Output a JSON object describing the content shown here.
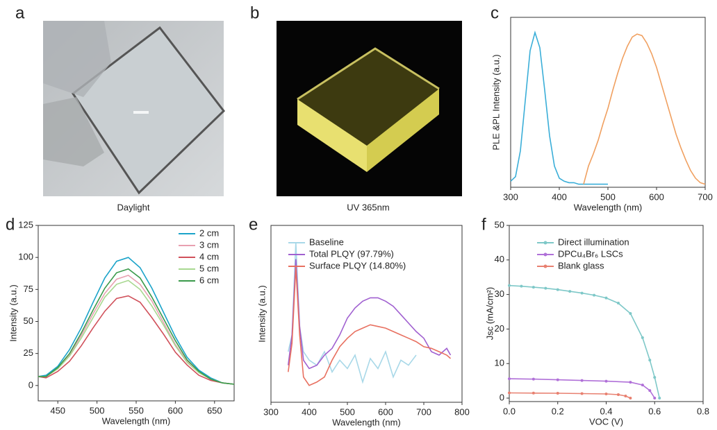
{
  "photos": [
    {
      "label": "a",
      "caption": "Daylight"
    },
    {
      "label": "b",
      "caption": "UV 365nm"
    }
  ],
  "chart_data": [
    {
      "type": "line",
      "label": "c",
      "ylabel": "PLE &PL Intensity (a.u.)",
      "xlabel": "Wavelength (nm)",
      "xlim": [
        300,
        700
      ],
      "xticks": [
        300,
        400,
        500,
        600,
        700
      ],
      "ylim": [
        -0.02,
        1.1
      ],
      "series": [
        {
          "color": "#3aaed8",
          "x": [
            300,
            310,
            320,
            330,
            340,
            350,
            360,
            370,
            380,
            390,
            400,
            410,
            420,
            430,
            440,
            450,
            460,
            470,
            480,
            490,
            500
          ],
          "values": [
            0.02,
            0.05,
            0.22,
            0.55,
            0.88,
            1.0,
            0.9,
            0.62,
            0.32,
            0.12,
            0.04,
            0.02,
            0.01,
            0.01,
            0,
            0,
            0,
            0,
            0,
            0,
            0
          ]
        },
        {
          "color": "#f0a060",
          "x": [
            450,
            460,
            470,
            480,
            490,
            500,
            510,
            520,
            530,
            540,
            550,
            560,
            570,
            580,
            590,
            600,
            610,
            620,
            630,
            640,
            650,
            660,
            670,
            680,
            690,
            700
          ],
          "values": [
            0,
            0.12,
            0.2,
            0.29,
            0.4,
            0.5,
            0.62,
            0.73,
            0.83,
            0.91,
            0.97,
            0.99,
            0.98,
            0.93,
            0.86,
            0.77,
            0.66,
            0.55,
            0.44,
            0.33,
            0.24,
            0.16,
            0.09,
            0.04,
            0.01,
            0
          ]
        }
      ]
    },
    {
      "type": "line",
      "label": "d",
      "ylabel": "Intensity (a.u.)",
      "xlabel": "Wavelength (nm)",
      "xlim": [
        425,
        675
      ],
      "xticks": [
        450,
        500,
        550,
        600,
        650
      ],
      "ylim": [
        -12,
        125
      ],
      "yticks": [
        0,
        25,
        50,
        75,
        100,
        125
      ],
      "legend": "upper right",
      "series": [
        {
          "name": "2 cm",
          "color": "#1aa3c9",
          "x": [
            425,
            435,
            450,
            465,
            480,
            495,
            510,
            525,
            540,
            555,
            570,
            585,
            600,
            615,
            630,
            645,
            660,
            675
          ],
          "values": [
            7,
            8,
            15,
            28,
            45,
            65,
            84,
            97,
            100,
            92,
            76,
            57,
            38,
            22,
            12,
            6,
            2,
            1
          ]
        },
        {
          "name": "3 cm",
          "color": "#e8a0b0",
          "x": [
            425,
            435,
            450,
            465,
            480,
            495,
            510,
            525,
            540,
            555,
            570,
            585,
            600,
            615,
            630,
            645,
            660,
            675
          ],
          "values": [
            7,
            7,
            13,
            24,
            39,
            56,
            72,
            83,
            86,
            79,
            66,
            49,
            32,
            19,
            10,
            5,
            2,
            1
          ]
        },
        {
          "name": "4 cm",
          "color": "#d0505a",
          "x": [
            425,
            435,
            450,
            465,
            480,
            495,
            510,
            525,
            540,
            555,
            570,
            585,
            600,
            615,
            630,
            645,
            660,
            675
          ],
          "values": [
            7,
            6,
            11,
            19,
            31,
            45,
            58,
            68,
            70,
            65,
            53,
            40,
            26,
            16,
            8,
            4,
            2,
            1
          ]
        },
        {
          "name": "5 cm",
          "color": "#a8d890",
          "x": [
            425,
            435,
            450,
            465,
            480,
            495,
            510,
            525,
            540,
            555,
            570,
            585,
            600,
            615,
            630,
            645,
            660,
            675
          ],
          "values": [
            7,
            7,
            13,
            23,
            37,
            53,
            69,
            79,
            82,
            75,
            62,
            47,
            31,
            18,
            10,
            5,
            2,
            1
          ]
        },
        {
          "name": "6 cm",
          "color": "#3a9a4a",
          "x": [
            425,
            435,
            450,
            465,
            480,
            495,
            510,
            525,
            540,
            555,
            570,
            585,
            600,
            615,
            630,
            645,
            660,
            675
          ],
          "values": [
            7,
            7,
            14,
            25,
            41,
            59,
            76,
            88,
            91,
            84,
            69,
            52,
            35,
            20,
            11,
            5,
            2,
            1
          ]
        }
      ]
    },
    {
      "type": "line",
      "label": "e",
      "ylabel": "Intensity (a.u.)",
      "xlabel": "Wavelength (nm)",
      "xlim": [
        300,
        800
      ],
      "xticks": [
        300,
        400,
        500,
        600,
        700,
        800
      ],
      "ylim": [
        0,
        1.05
      ],
      "legend": "upper left",
      "series": [
        {
          "name": "Baseline",
          "color": "#a8d8e8",
          "x": [
            345,
            355,
            365,
            375,
            385,
            400,
            420,
            440,
            460,
            480,
            500,
            520,
            540,
            560,
            580,
            600,
            620,
            640,
            660,
            680,
            700,
            720,
            740,
            760,
            770
          ],
          "values": [
            0.3,
            0.4,
            0.95,
            0.45,
            0.3,
            0.25,
            0.22,
            0.3,
            0.18,
            0.25,
            0.2,
            0.28,
            0.12,
            0.26,
            0.2,
            0.3,
            0.15,
            0.25,
            0.22,
            0.28,
            null,
            null,
            null,
            null,
            null
          ]
        },
        {
          "name": "Total PLQY (97.79%)",
          "color": "#a060d0",
          "x": [
            345,
            355,
            365,
            375,
            385,
            400,
            420,
            440,
            460,
            480,
            500,
            520,
            540,
            560,
            580,
            600,
            620,
            640,
            660,
            680,
            700,
            720,
            740,
            760,
            770
          ],
          "values": [
            0.22,
            0.4,
            0.85,
            0.45,
            0.25,
            0.2,
            0.22,
            0.28,
            0.32,
            0.4,
            0.5,
            0.56,
            0.6,
            0.62,
            0.62,
            0.6,
            0.57,
            0.52,
            0.47,
            0.42,
            0.38,
            0.3,
            0.28,
            0.32,
            0.28
          ]
        },
        {
          "name": "Surface PLQY  (14.80%)",
          "color": "#e87060",
          "x": [
            345,
            355,
            365,
            375,
            385,
            400,
            420,
            440,
            460,
            480,
            500,
            520,
            540,
            560,
            580,
            600,
            620,
            640,
            660,
            680,
            700,
            720,
            740,
            760,
            770
          ],
          "values": [
            0.18,
            0.35,
            0.8,
            0.4,
            0.15,
            0.1,
            0.12,
            0.15,
            0.25,
            0.33,
            0.38,
            0.42,
            0.44,
            0.46,
            0.45,
            0.44,
            0.42,
            0.4,
            0.38,
            0.36,
            0.33,
            0.32,
            0.3,
            0.28,
            0.26
          ]
        }
      ]
    },
    {
      "type": "line",
      "label": "f",
      "ylabel": "Jsc (mA/cm²)",
      "xlabel": "VOC (V)",
      "xlim": [
        0,
        0.8
      ],
      "xticks": [
        {
          "value": 0,
          "label": "0.0"
        },
        0.2,
        0.4,
        0.6,
        0.8
      ],
      "ylim": [
        -1,
        50
      ],
      "yticks": [
        0,
        10,
        20,
        30,
        40,
        50
      ],
      "legend": "upper left",
      "markers": true,
      "series": [
        {
          "name": "Direct illumination",
          "color": "#7ec8c8",
          "x": [
            0,
            0.05,
            0.1,
            0.15,
            0.2,
            0.25,
            0.3,
            0.35,
            0.4,
            0.45,
            0.5,
            0.55,
            0.58,
            0.6,
            0.62
          ],
          "values": [
            32.6,
            32.4,
            32.1,
            31.8,
            31.4,
            30.9,
            30.4,
            29.8,
            29.0,
            27.5,
            24.5,
            17.5,
            11,
            6,
            0
          ]
        },
        {
          "name": "DPCu₄Br₆ LSCs",
          "color": "#b070d8",
          "x": [
            0,
            0.1,
            0.2,
            0.3,
            0.4,
            0.5,
            0.55,
            0.58,
            0.6
          ],
          "values": [
            5.6,
            5.5,
            5.3,
            5.1,
            4.9,
            4.6,
            3.8,
            2.2,
            0
          ]
        },
        {
          "name": "Blank glass",
          "color": "#e88070",
          "x": [
            0,
            0.1,
            0.2,
            0.3,
            0.4,
            0.45,
            0.48,
            0.5
          ],
          "values": [
            1.5,
            1.45,
            1.4,
            1.3,
            1.2,
            1.0,
            0.6,
            0
          ]
        }
      ]
    }
  ]
}
